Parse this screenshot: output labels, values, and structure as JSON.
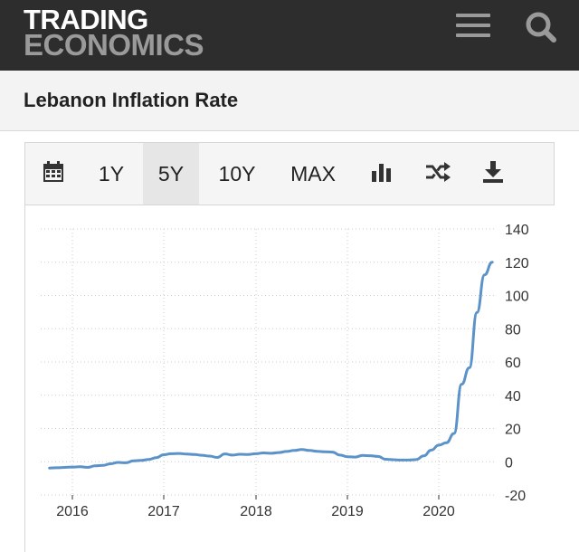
{
  "header": {
    "logo_line1": "TRADING",
    "logo_line2": "ECONOMICS",
    "menu_icon": "hamburger-menu-icon",
    "search_icon": "search-icon",
    "background_color": "#2d2d2d"
  },
  "page": {
    "title": "Lebanon Inflation Rate"
  },
  "toolbar": {
    "calendar_icon": "calendar-icon",
    "ranges": [
      "1Y",
      "5Y",
      "10Y",
      "MAX"
    ],
    "active_range": "5Y",
    "chart_type_icon": "bar-chart-icon",
    "compare_icon": "shuffle-icon",
    "download_icon": "download-icon"
  },
  "chart_data": {
    "type": "line",
    "title": "",
    "xlabel": "",
    "ylabel": "",
    "ylim": [
      -20,
      140
    ],
    "yticks": [
      -20,
      0,
      20,
      40,
      60,
      80,
      100,
      120,
      140
    ],
    "x_tick_labels": [
      "2016",
      "2017",
      "2018",
      "2019",
      "2020"
    ],
    "grid": true,
    "y_axis_position": "right",
    "line_color": "#5b93c9",
    "series": [
      {
        "x": [
          "2015-10",
          "2015-11",
          "2015-12",
          "2016-01",
          "2016-02",
          "2016-03",
          "2016-04",
          "2016-05",
          "2016-06",
          "2016-07",
          "2016-08",
          "2016-09",
          "2016-10",
          "2016-11",
          "2016-12",
          "2017-01",
          "2017-02",
          "2017-03",
          "2017-04",
          "2017-05",
          "2017-06",
          "2017-07",
          "2017-08",
          "2017-09",
          "2017-10",
          "2017-11",
          "2017-12",
          "2018-01",
          "2018-02",
          "2018-03",
          "2018-04",
          "2018-05",
          "2018-06",
          "2018-07",
          "2018-08",
          "2018-09",
          "2018-10",
          "2018-11",
          "2018-12",
          "2019-01",
          "2019-02",
          "2019-03",
          "2019-04",
          "2019-05",
          "2019-06",
          "2019-07",
          "2019-08",
          "2019-09",
          "2019-10",
          "2019-11",
          "2019-12",
          "2020-01",
          "2020-02",
          "2020-03",
          "2020-04",
          "2020-05",
          "2020-06",
          "2020-07",
          "2020-08"
        ],
        "values": [
          -3.8,
          -3.6,
          -3.4,
          -3.2,
          -3.0,
          -3.4,
          -2.5,
          -2.2,
          -1.2,
          -0.4,
          -0.6,
          0.5,
          0.8,
          1.4,
          2.5,
          4.2,
          4.8,
          5.0,
          4.6,
          4.3,
          3.9,
          3.4,
          2.6,
          4.7,
          4.0,
          4.5,
          4.4,
          4.8,
          5.3,
          5.1,
          5.5,
          6.2,
          6.8,
          7.4,
          6.8,
          6.3,
          6.0,
          5.8,
          4.0,
          3.0,
          2.8,
          3.8,
          3.6,
          3.2,
          1.5,
          1.2,
          1.0,
          1.0,
          1.3,
          3.5,
          7.0,
          10.0,
          11.4,
          17.0,
          46.6,
          56.5,
          89.7,
          112.4,
          120.0
        ]
      }
    ]
  }
}
